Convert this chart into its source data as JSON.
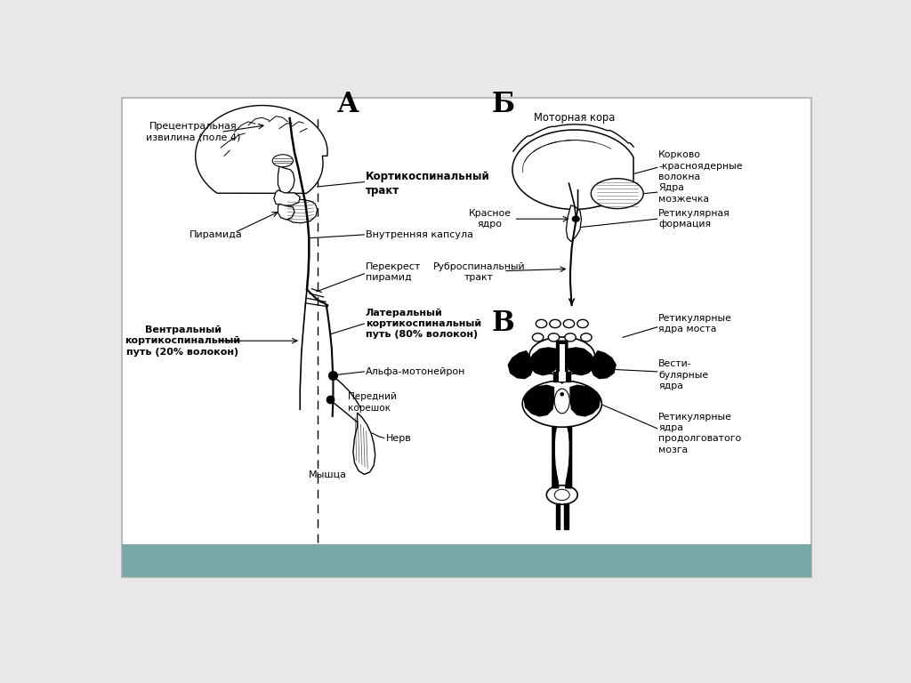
{
  "bg_color": "#e8e8e8",
  "panel_bg": "#ffffff",
  "teal_bar_color": "#7aA8A8",
  "label_A": "А",
  "label_B": "Б",
  "label_V": "В",
  "text_precentral": "Прецентральная\nизвилина (поле 4)",
  "text_corticospinal": "Кортикоспинальный\nтракт",
  "text_internal_capsule": "Внутренняя капсула",
  "text_pyramid_cross": "Перекрест\nпирамид",
  "text_lateral": "Латеральный\nкортикоспинальный\nпуть (80% волокон)",
  "text_alpha": "Альфа-мотонейрон",
  "text_anterior_root": "Передний\nкорешок",
  "text_nerve": "Нерв",
  "text_muscle": "Мышца",
  "text_pyramid": "Пирамида",
  "text_ventral": "Вентральный\nкортикоспинальный\nпуть (20% волокон)",
  "text_motor_cortex": "Моторная кора",
  "text_cortico_red": "Корково\n-красноядерные\nволокна",
  "text_red_nucleus": "Красное\nядро",
  "text_cerebellum_nuclei": "Ядра\nмозжечка",
  "text_rubrospinal": "Руброспинальный\nтракт",
  "text_reticular_formation": "Ретикулярная\nформация",
  "text_reticular_pons": "Ретикулярные\nядра моста",
  "text_vestibular": "Вести-\nбулярные\nядра",
  "text_reticular_medulla": "Ретикулярные\nядра\nпродолговатого\nмозга"
}
